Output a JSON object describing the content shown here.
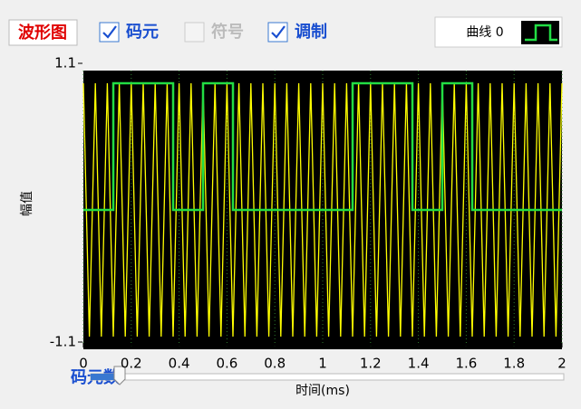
{
  "ui": {
    "panel_label": "波形图",
    "checkboxes": [
      {
        "label": "码元",
        "checked": true,
        "enabled": true
      },
      {
        "label": "符号",
        "checked": false,
        "enabled": false
      },
      {
        "label": "调制",
        "checked": true,
        "enabled": true
      }
    ],
    "slider_label": "码元数"
  },
  "chart_data": {
    "type": "line",
    "x_label": "时间(ms)",
    "y_label": "幅值",
    "xlim": [
      0,
      2
    ],
    "xticks": [
      0,
      0.2,
      0.4,
      0.6,
      0.8,
      1,
      1.2,
      1.4,
      1.6,
      1.8,
      2
    ],
    "ylim": [
      -1.1,
      1.1
    ],
    "yticks": [
      -1.1,
      1.1
    ],
    "grid": true,
    "background": "#000000",
    "grid_color": "#2e7d2e",
    "series": [
      {
        "color": "#ffff00",
        "x": [
          0,
          0.025,
          0.05,
          0.075,
          0.1,
          0.125,
          0.15,
          0.175,
          0.2,
          0.225,
          0.25,
          0.275,
          0.3,
          0.325,
          0.35,
          0.375,
          0.4,
          0.425,
          0.45,
          0.475,
          0.5,
          0.525,
          0.55,
          0.575,
          0.6,
          0.625,
          0.65,
          0.675,
          0.7,
          0.725,
          0.75,
          0.775,
          0.8,
          0.825,
          0.85,
          0.875,
          0.9,
          0.925,
          0.95,
          0.975,
          1,
          1.025,
          1.05,
          1.075,
          1.1,
          1.125,
          1.15,
          1.175,
          1.2,
          1.225,
          1.25,
          1.275,
          1.3,
          1.325,
          1.35,
          1.375,
          1.4,
          1.425,
          1.45,
          1.475,
          1.5,
          1.525,
          1.55,
          1.575,
          1.6,
          1.625,
          1.65,
          1.675,
          1.7,
          1.725,
          1.75,
          1.775,
          1.8,
          1.825,
          1.85,
          1.875,
          1.9,
          1.925,
          1.95,
          1.975,
          2
        ],
        "values": [
          1,
          -1,
          1,
          -1,
          1,
          -1,
          1,
          -1,
          1,
          -1,
          1,
          -1,
          1,
          -1,
          1,
          -1,
          1,
          -1,
          1,
          -1,
          1,
          -1,
          1,
          -1,
          1,
          -1,
          1,
          -1,
          1,
          -1,
          1,
          -1,
          1,
          -1,
          1,
          -1,
          1,
          -1,
          1,
          -1,
          1,
          -1,
          1,
          -1,
          1,
          -1,
          1,
          -1,
          1,
          -1,
          1,
          -1,
          1,
          -1,
          1,
          -1,
          1,
          -1,
          1,
          -1,
          1,
          -1,
          1,
          -1,
          1,
          -1,
          1,
          -1,
          1,
          -1,
          1,
          -1,
          1,
          -1,
          1,
          -1,
          1,
          -1,
          1,
          -1,
          1
        ]
      },
      {
        "name": "曲线 0",
        "color": "#22dd44",
        "x": [
          0,
          0.125,
          0.125,
          0.375,
          0.375,
          0.5,
          0.5,
          0.625,
          0.625,
          1.125,
          1.125,
          1.375,
          1.375,
          1.5,
          1.5,
          1.625,
          1.625,
          2
        ],
        "values": [
          0,
          0,
          1,
          1,
          0,
          0,
          1,
          1,
          0,
          0,
          1,
          1,
          0,
          0,
          1,
          1,
          0,
          0
        ]
      }
    ]
  }
}
